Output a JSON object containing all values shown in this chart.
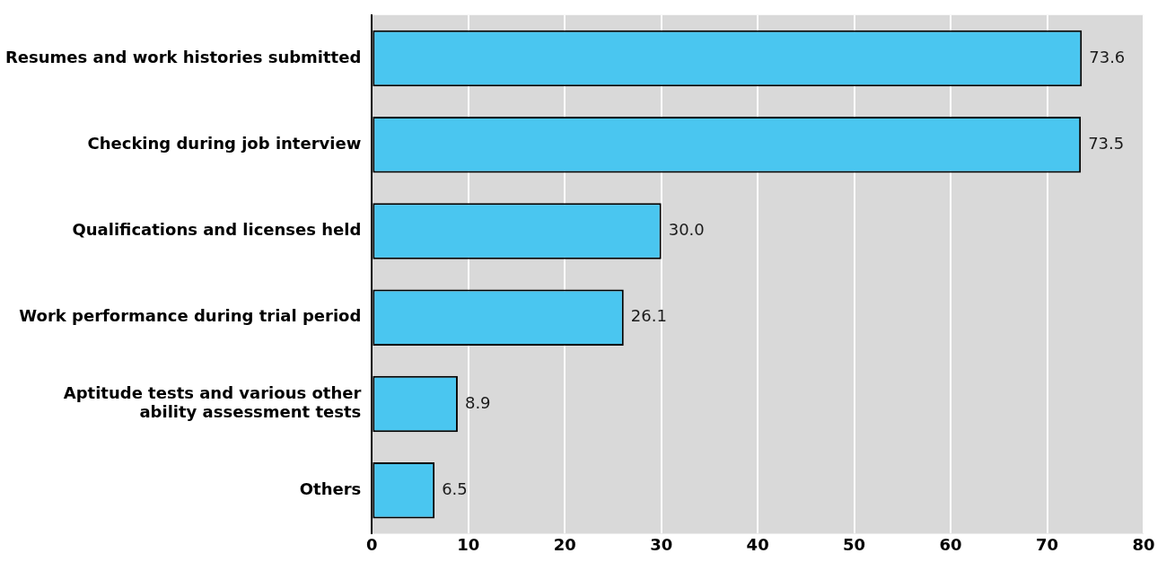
{
  "chart_data": {
    "type": "bar",
    "orientation": "horizontal",
    "categories": [
      "Resumes and work histories submitted",
      "Checking during job interview",
      "Qualifications and licenses held",
      "Work performance during trial period",
      "Aptitude tests and various other\nability assessment tests",
      "Others"
    ],
    "values": [
      73.6,
      73.5,
      30.0,
      26.1,
      8.9,
      6.5
    ],
    "color": "#4ac6f0",
    "xlim": [
      0,
      80
    ],
    "xticks": [
      0,
      10,
      20,
      30,
      40,
      50,
      60,
      70,
      80
    ],
    "value_labels": [
      "73.6",
      "73.5",
      "30.0",
      "26.1",
      "8.9",
      "6.5"
    ],
    "grid": "x"
  }
}
